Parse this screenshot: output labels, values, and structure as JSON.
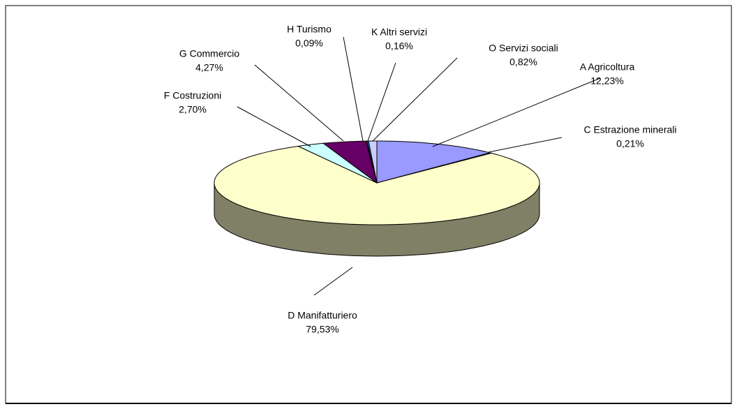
{
  "chart_data": {
    "type": "pie3d",
    "categories": [
      "A Agricoltura",
      "C Estrazione minerali",
      "D Manifatturiero",
      "F Costruzioni",
      "G Commercio",
      "H Turismo",
      "K Altri servizi",
      "O Servizi sociali"
    ],
    "values": [
      12.23,
      0.21,
      79.53,
      2.7,
      4.27,
      0.09,
      0.16,
      0.82
    ],
    "value_labels": [
      "12,23%",
      "0,21%",
      "79,53%",
      "2,70%",
      "4,27%",
      "0,09%",
      "0,16%",
      "0,82%"
    ],
    "colors": [
      "#9999ff",
      "#993366",
      "#ffffcc",
      "#ccffff",
      "#660066",
      "#ff8080",
      "#0066cc",
      "#ccccff"
    ]
  }
}
